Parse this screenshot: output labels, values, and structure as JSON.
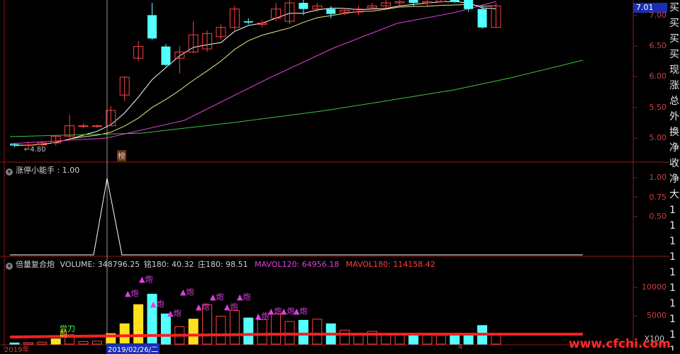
{
  "colors": {
    "background": "#000000",
    "grid": "#8b1a1a",
    "candle_up": "#ff4040",
    "candle_down": "#54ffff",
    "ma_white": "#ffffff",
    "ma_yellow": "#f0e080",
    "ma_magenta": "#e040e0",
    "ma_green": "#40c040",
    "vol_red": "#ff2020",
    "vol_yellow": "#ffe020",
    "signal_magenta": "#e040e0",
    "axis_text": "#d04040"
  },
  "price_panel": {
    "current_price": "7.01",
    "low_label": "4.80",
    "marker_label": "榜",
    "y_ticks": [
      "7.00",
      "6.50",
      "6.00",
      "5.50",
      "5.00"
    ]
  },
  "indicator_panel": {
    "title": "涨停小能手",
    "value": ": 1.00",
    "y_ticks": [
      "1.00",
      "0.75",
      "0.50"
    ]
  },
  "volume_panel": {
    "title": "倍量复合炮",
    "volume_label": "VOLUME: 348796.25",
    "ming_label": "铭180: 40.32",
    "zhuang_label": "庄180: 98.51",
    "mavol120_label": "MAVOL120: 64956.18",
    "mavol180_label": "MAVOL180: 114158.42",
    "y_ticks": [
      "10000",
      "5000"
    ],
    "scale_label": "X100",
    "signal_label": "炮",
    "green_labels": [
      "尝刀",
      "前"
    ]
  },
  "x_axis": {
    "left_label": "2019年",
    "cursor_date": "2019/02/26/二",
    "right_label": "4"
  },
  "side_column": [
    "买",
    "买",
    "买",
    "买",
    "现",
    "涨",
    "总",
    "外",
    "换",
    "净",
    "收",
    "净",
    "大",
    "1",
    "1",
    "1",
    "1",
    "1",
    "1",
    "1",
    "1",
    "1",
    "1"
  ],
  "watermark": "www.cfchi.com",
  "chart_data": {
    "type": "candlestick",
    "price_range": [
      4.7,
      7.2
    ],
    "candles": [
      {
        "o": 4.9,
        "c": 4.88,
        "h": 4.92,
        "l": 4.85
      },
      {
        "o": 4.88,
        "c": 4.89,
        "h": 4.94,
        "l": 4.82
      },
      {
        "o": 4.89,
        "c": 4.92,
        "h": 4.95,
        "l": 4.86
      },
      {
        "o": 4.92,
        "c": 5.03,
        "h": 5.05,
        "l": 4.88
      },
      {
        "o": 5.03,
        "c": 5.2,
        "h": 5.38,
        "l": 5.0
      },
      {
        "o": 5.2,
        "c": 5.2,
        "h": 5.24,
        "l": 5.16
      },
      {
        "o": 5.19,
        "c": 5.2,
        "h": 5.22,
        "l": 5.16
      },
      {
        "o": 5.2,
        "c": 5.45,
        "h": 5.52,
        "l": 5.2
      },
      {
        "o": 5.7,
        "c": 5.99,
        "h": 6.0,
        "l": 5.6
      },
      {
        "o": 6.3,
        "c": 6.49,
        "h": 6.58,
        "l": 6.25
      },
      {
        "o": 7.0,
        "c": 6.62,
        "h": 7.2,
        "l": 6.6
      },
      {
        "o": 6.49,
        "c": 6.19,
        "h": 6.53,
        "l": 6.17
      },
      {
        "o": 6.3,
        "c": 6.4,
        "h": 6.5,
        "l": 6.05
      },
      {
        "o": 6.4,
        "c": 6.68,
        "h": 6.9,
        "l": 6.38
      },
      {
        "o": 6.45,
        "c": 6.7,
        "h": 6.75,
        "l": 6.4
      },
      {
        "o": 6.65,
        "c": 6.8,
        "h": 6.85,
        "l": 6.6
      },
      {
        "o": 6.8,
        "c": 7.1,
        "h": 7.15,
        "l": 6.75
      },
      {
        "o": 6.9,
        "c": 6.88,
        "h": 6.95,
        "l": 6.85
      },
      {
        "o": 6.85,
        "c": 6.87,
        "h": 6.92,
        "l": 6.8
      },
      {
        "o": 6.95,
        "c": 7.1,
        "h": 7.2,
        "l": 6.9
      },
      {
        "o": 6.9,
        "c": 7.2,
        "h": 7.25,
        "l": 6.85
      },
      {
        "o": 7.2,
        "c": 7.1,
        "h": 7.25,
        "l": 7.0
      },
      {
        "o": 7.1,
        "c": 7.15,
        "h": 7.2,
        "l": 7.05
      },
      {
        "o": 7.1,
        "c": 7.02,
        "h": 7.15,
        "l": 6.95
      },
      {
        "o": 7.05,
        "c": 7.08,
        "h": 7.12,
        "l": 7.0
      },
      {
        "o": 7.05,
        "c": 7.1,
        "h": 7.15,
        "l": 7.0
      },
      {
        "o": 7.12,
        "c": 7.15,
        "h": 7.2,
        "l": 7.1
      },
      {
        "o": 7.15,
        "c": 7.2,
        "h": 7.25,
        "l": 7.1
      },
      {
        "o": 7.2,
        "c": 7.22,
        "h": 7.25,
        "l": 7.15
      },
      {
        "o": 7.25,
        "c": 7.2,
        "h": 7.3,
        "l": 7.15
      },
      {
        "o": 7.2,
        "c": 7.22,
        "h": 7.3,
        "l": 7.15
      },
      {
        "o": 7.22,
        "c": 7.25,
        "h": 7.3,
        "l": 7.2
      },
      {
        "o": 7.25,
        "c": 7.22,
        "h": 7.3,
        "l": 7.2
      },
      {
        "o": 7.25,
        "c": 7.1,
        "h": 7.3,
        "l": 7.05
      },
      {
        "o": 7.1,
        "c": 6.8,
        "h": 7.15,
        "l": 6.78
      },
      {
        "o": 6.8,
        "c": 7.15,
        "h": 7.2,
        "l": 6.8
      }
    ],
    "volume": [
      200,
      250,
      350,
      900,
      1600,
      450,
      500,
      1800,
      3500,
      6800,
      8600,
      5200,
      3000,
      4300,
      6800,
      4800,
      5800,
      4500,
      4200,
      5200,
      3900,
      4100,
      4300,
      3500,
      2400,
      1600,
      2200,
      1600,
      1700,
      1600,
      1800,
      1500,
      1700,
      1600,
      3200,
      1700
    ]
  }
}
